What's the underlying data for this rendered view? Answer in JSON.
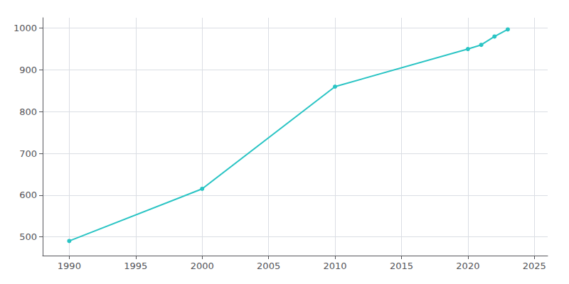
{
  "chart_data": {
    "type": "line",
    "x": [
      1990,
      2000,
      2010,
      2020,
      2021,
      2022,
      2023
    ],
    "values": [
      490,
      615,
      860,
      950,
      960,
      980,
      997
    ],
    "color": "#2ac4c4",
    "marker": "circle",
    "xlim": [
      1988,
      2026
    ],
    "xticks": [
      1990,
      1995,
      2000,
      2005,
      2010,
      2015,
      2020,
      2025
    ],
    "ylim": [
      455,
      1025
    ],
    "yticks": [
      500,
      600,
      700,
      800,
      900,
      1000
    ],
    "grid": true
  }
}
